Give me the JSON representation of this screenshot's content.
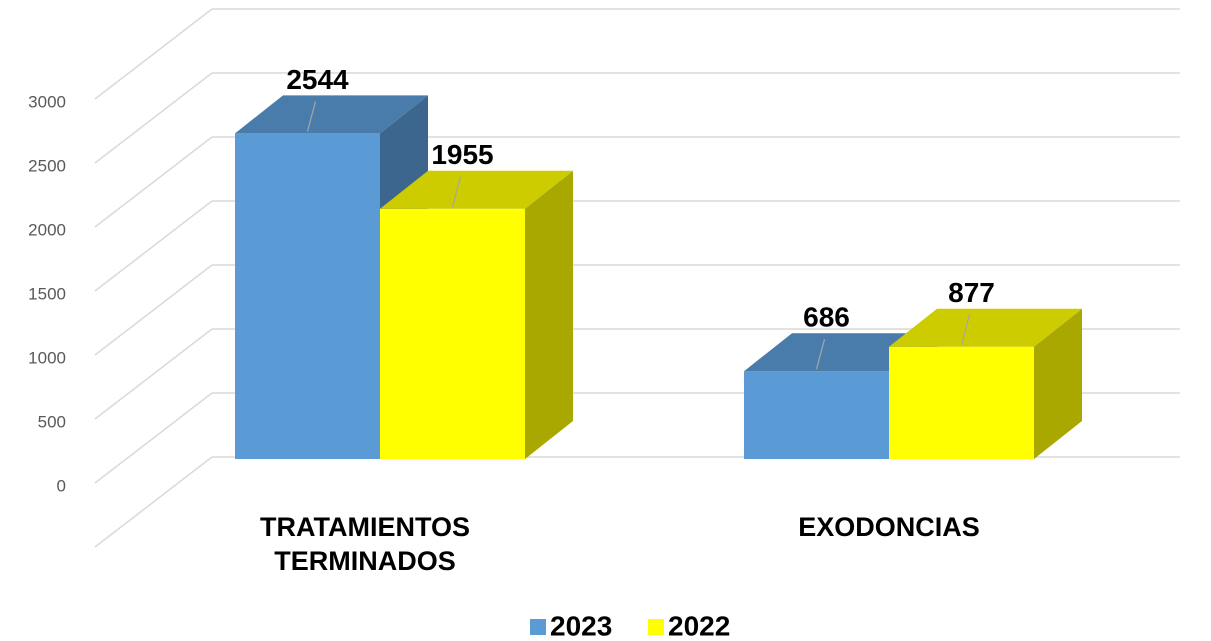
{
  "chart_data": {
    "type": "bar3d",
    "categories": [
      "TRATAMIENTOS TERMINADOS",
      "EXODONCIAS"
    ],
    "series": [
      {
        "name": "2023",
        "color": "#5b9bd5",
        "values": [
          2544,
          686
        ]
      },
      {
        "name": "2022",
        "color": "#ffff00",
        "values": [
          1955,
          877
        ]
      }
    ],
    "ylim": [
      0,
      3500
    ],
    "yticks": [
      0,
      500,
      1000,
      1500,
      2000,
      2500,
      3000
    ],
    "grid": true,
    "legend": "bottom"
  }
}
